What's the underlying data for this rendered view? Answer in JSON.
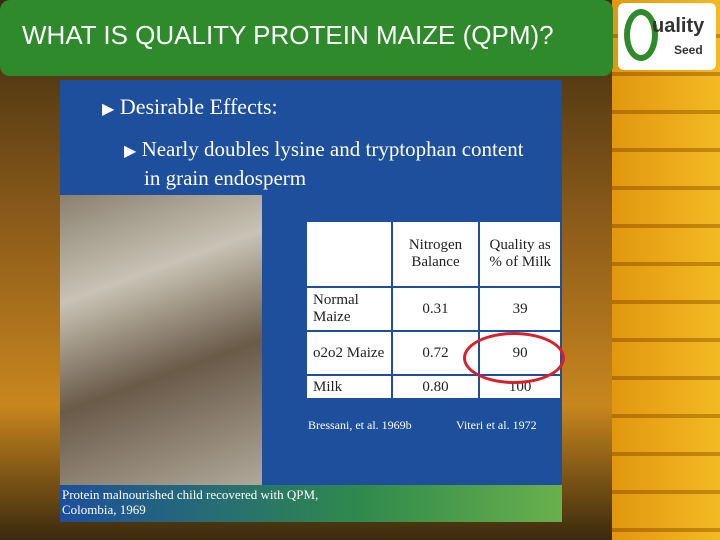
{
  "header": {
    "title": "WHAT IS QUALITY PROTEIN MAIZE (QPM)?"
  },
  "logo": {
    "brand": "uality",
    "sub": "Seed"
  },
  "bullets": {
    "level1": "Desirable Effects:",
    "level2": "Nearly doubles lysine and tryptophan content in grain endosperm"
  },
  "table": {
    "columns": [
      "Nitrogen Balance",
      "Quality as % of Milk"
    ],
    "rows": [
      {
        "label": "Normal Maize",
        "values": [
          "0.31",
          "39"
        ]
      },
      {
        "label": "o2o2 Maize",
        "values": [
          "0.72",
          "90"
        ]
      },
      {
        "label": "Milk",
        "values": [
          "0.80",
          "100"
        ]
      }
    ]
  },
  "citations": [
    "Bressani, et al. 1969b",
    "Viteri et al. 1972"
  ],
  "photo": {
    "caption": "Protein malnourished child recovered with QPM, Colombia, 1969"
  }
}
